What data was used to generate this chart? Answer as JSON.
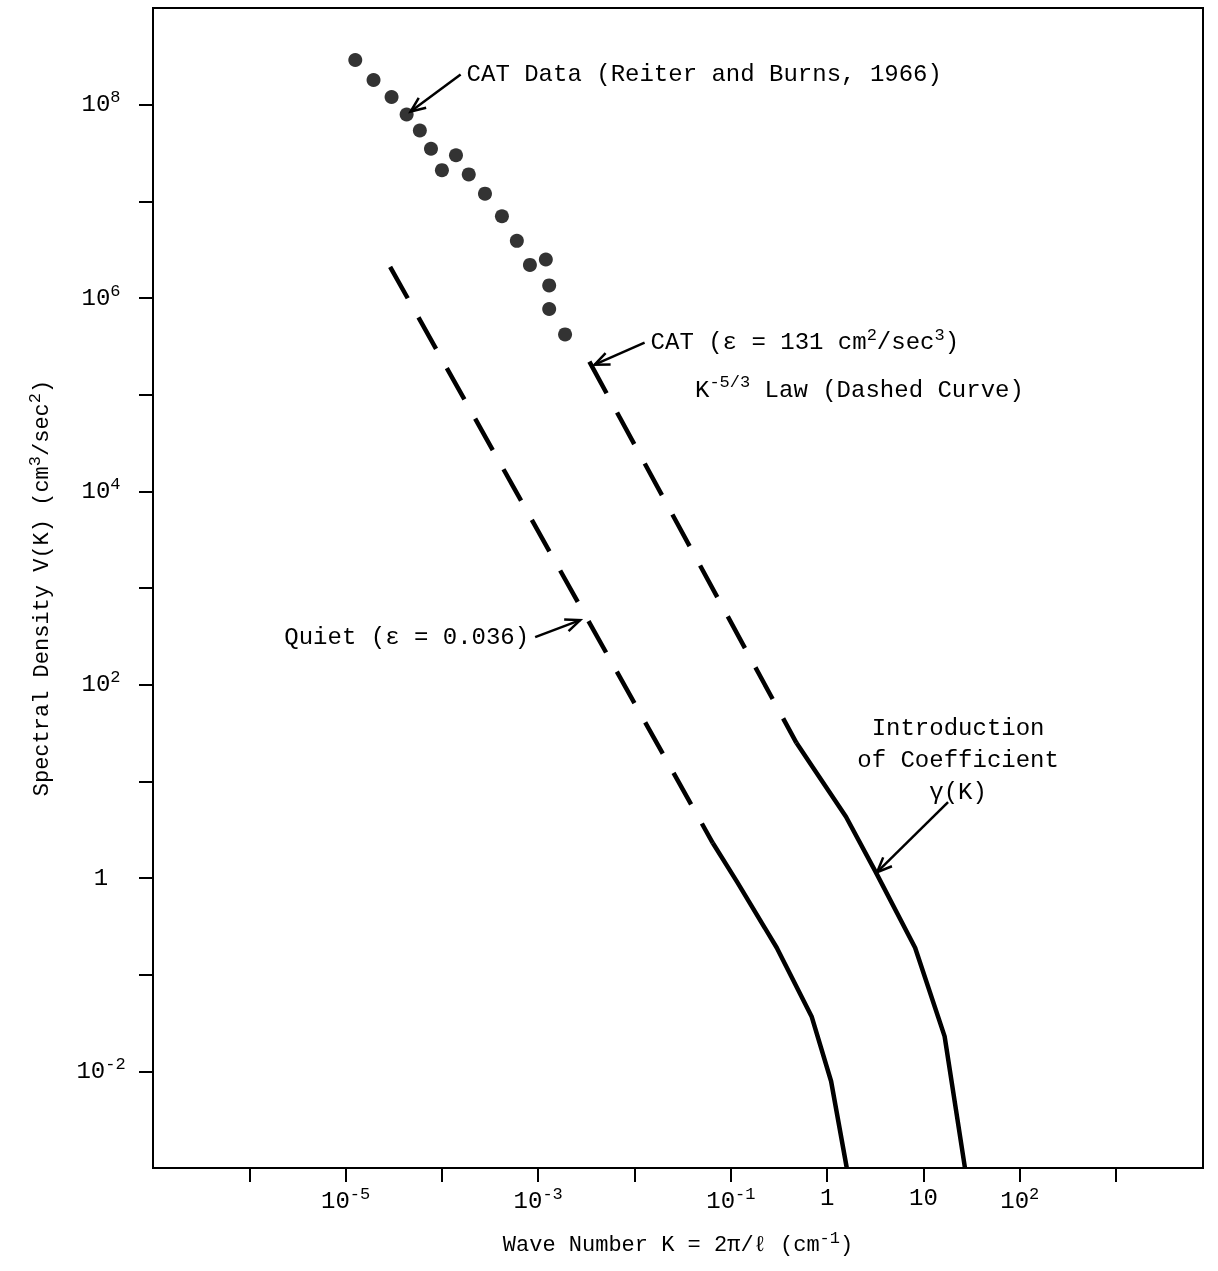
{
  "chart_data": {
    "type": "scatter",
    "xlabel": "Wave Number K = 2π/ℓ (cm$^{-1}$)",
    "ylabel": "Spectral Density V(K) (cm$^{3}$/sec$^{2}$)",
    "log": "xy",
    "xlim": [
      1e-07,
      8000
    ],
    "ylim": [
      0.001,
      1000000000
    ],
    "xticks": [
      {
        "value": 1e-06,
        "label": null
      },
      {
        "value": 1e-05,
        "label": "10$^{-5}$"
      },
      {
        "value": 0.0001,
        "label": null
      },
      {
        "value": 0.001,
        "label": "10$^{-3}$"
      },
      {
        "value": 0.01,
        "label": null
      },
      {
        "value": 0.1,
        "label": "10$^{-1}$"
      },
      1,
      10,
      {
        "value": 100,
        "label": "10$^{2}$"
      },
      {
        "value": 1000,
        "label": null
      }
    ],
    "yticks": [
      {
        "value": 0.01,
        "label": "10$^{-2}$"
      },
      {
        "value": 0.1,
        "label": null
      },
      1,
      {
        "value": 10,
        "label": null
      },
      {
        "value": 100,
        "label": "10$^{2}$"
      },
      {
        "value": 1000,
        "label": null
      },
      {
        "value": 10000,
        "label": "10$^{4}$"
      },
      {
        "value": 100000,
        "label": null
      },
      {
        "value": 1000000,
        "label": "10$^{6}$"
      },
      {
        "value": 10000000,
        "label": null
      },
      {
        "value": 100000000,
        "label": "10$^{8}$"
      }
    ],
    "series": [
      {
        "color": "#000000",
        "marker": "circle",
        "x": [
          1.26e-05,
          1.95e-05,
          3e-05,
          4.3e-05,
          5.9e-05,
          7.7e-05,
          0.0001,
          0.00014,
          0.00019,
          0.00028,
          0.00042,
          0.0006,
          0.00082,
          0.0012,
          0.0013,
          0.0013,
          0.0019
        ],
        "values": [
          290000000.0,
          180000000.0,
          120000000.0,
          79000000.0,
          54000000.0,
          35000000.0,
          21000000.0,
          30000000.0,
          19000000.0,
          12000000.0,
          7000000.0,
          3900000.0,
          2200000.0,
          2500000.0,
          1350000.0,
          770000.0,
          420000.0
        ]
      },
      {
        "type": "line",
        "color": "#000000",
        "marker": "none",
        "line_style": "dashed",
        "x": [
          2.9e-05,
          0.065
        ],
        "values": [
          2100000.0,
          2.3
        ]
      },
      {
        "type": "line",
        "color": "#000000",
        "marker": "none",
        "line_style": "solid",
        "x": [
          0.065,
          0.117,
          0.3,
          0.69,
          1.1,
          1.6
        ],
        "values": [
          2.3,
          0.9,
          0.19,
          0.037,
          0.0079,
          0.001
        ]
      },
      {
        "type": "line",
        "color": "#000000",
        "marker": "none",
        "line_style": "dashed",
        "x": [
          0.0034,
          0.48
        ],
        "values": [
          220000,
          25
        ]
      },
      {
        "type": "line",
        "color": "#000000",
        "marker": "none",
        "line_style": "solid",
        "x": [
          0.48,
          1.57,
          3.2,
          8.2,
          16.6,
          27
        ],
        "values": [
          25,
          4.3,
          1.15,
          0.19,
          0.023,
          0.001
        ]
      }
    ],
    "annotations": [
      {
        "text": "CAT Data (Reiter and Burns, 1966)",
        "x": 4.3e-05,
        "y": 79000000
      },
      {
        "text": "CAT (ε = 131 cm$^{2}$/sec$^{3}$)",
        "x": 0.0035,
        "y": 190000
      },
      "K$^{-5/3}$ Law (Dashed Curve)",
      {
        "text": "Quiet (ε = 0.036)",
        "x": 0.003,
        "y": 500
      },
      {
        "text": "Introduction\nof Coefficient\nγ(K)",
        "x": 3.0,
        "y": 1.07
      }
    ]
  }
}
